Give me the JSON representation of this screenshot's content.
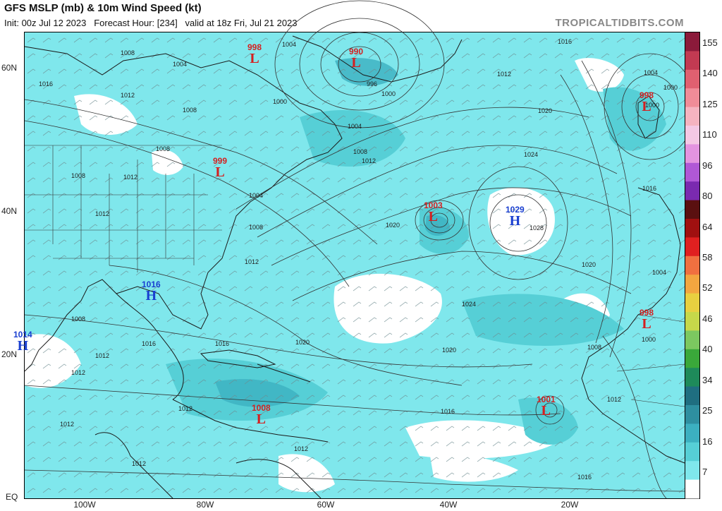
{
  "header": {
    "title": "GFS MSLP (mb) & 10m Wind Speed (kt)",
    "subtitle": "Init: 00z Jul 12 2023   Forecast Hour: [234]   valid at 18z Fri, Jul 21 2023",
    "brand": "TROPICALTIDBITS.COM"
  },
  "axes": {
    "lat_labels": [
      "60N",
      "40N",
      "20N",
      "EQ"
    ],
    "lon_labels": [
      "100W",
      "80W",
      "60W",
      "40W",
      "20W"
    ]
  },
  "colorbar": {
    "labels": [
      "155",
      "140",
      "125",
      "110",
      "96",
      "80",
      "64",
      "58",
      "52",
      "46",
      "40",
      "34",
      "25",
      "16",
      "7"
    ],
    "colors": [
      "#8b1a3a",
      "#c23a52",
      "#e06070",
      "#f08c98",
      "#f5b3c0",
      "#f4c8e4",
      "#e394e0",
      "#b058d6",
      "#7a2ab0",
      "#5a1010",
      "#a01010",
      "#e02020",
      "#f07040",
      "#f2a640",
      "#e8d040",
      "#c6d84a",
      "#7cc860",
      "#3aa83a",
      "#1e8a5a",
      "#1f6e80",
      "#2e8fa0",
      "#3cb0c0",
      "#56cfd6",
      "#7fe7ec",
      "#ffffff"
    ]
  },
  "pressure_centers": [
    {
      "type": "L",
      "value": "998",
      "color": "#d42020"
    },
    {
      "type": "L",
      "value": "990",
      "color": "#d42020"
    },
    {
      "type": "L",
      "value": "999",
      "color": "#d42020"
    },
    {
      "type": "L",
      "value": "1003",
      "color": "#d42020"
    },
    {
      "type": "H",
      "value": "1029",
      "color": "#1a3fd0"
    },
    {
      "type": "H",
      "value": "1016",
      "color": "#1a3fd0"
    },
    {
      "type": "H",
      "value": "1014",
      "color": "#1a3fd0"
    },
    {
      "type": "L",
      "value": "1008",
      "color": "#d42020"
    },
    {
      "type": "L",
      "value": "1001",
      "color": "#d42020"
    },
    {
      "type": "L",
      "value": "998",
      "color": "#d42020"
    },
    {
      "type": "L",
      "value": "998",
      "color": "#d42020"
    }
  ],
  "isobar_labels": [
    "1008",
    "1004",
    "1016",
    "1012",
    "1000",
    "996",
    "1000",
    "1004",
    "1012",
    "1016",
    "1012",
    "1008",
    "1004",
    "1008",
    "1012",
    "1008",
    "1012",
    "1008",
    "1020",
    "1020",
    "1028",
    "1024",
    "1024",
    "1020",
    "1020",
    "1020",
    "1016",
    "1016",
    "1012",
    "1012",
    "1012",
    "1012",
    "1012",
    "1012",
    "1008",
    "1012",
    "1016",
    "1004",
    "1000",
    "1008",
    "1012",
    "1016",
    "1016",
    "1000",
    "1004",
    "1000",
    "1004",
    "1008"
  ]
}
